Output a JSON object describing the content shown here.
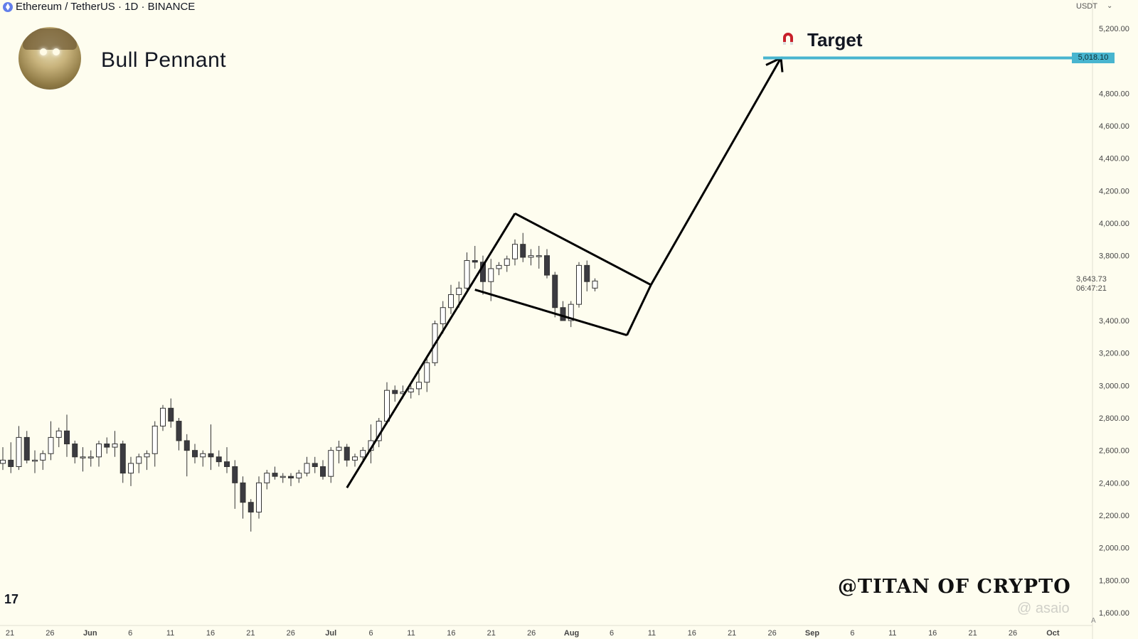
{
  "header": {
    "symbol": "Ethereum / TetherUS · 1D · BINANCE"
  },
  "title": "Bull Pennant",
  "target_label": "Target",
  "watermark": "@TITAN OF CRYPTO",
  "tv_logo": "17",
  "faint_watermark": "@ asaio",
  "price_axis": {
    "unit": "USDT",
    "ticks": [
      "5,200.00",
      "4,800.00",
      "4,600.00",
      "4,400.00",
      "4,200.00",
      "4,000.00",
      "3,800.00",
      "3,400.00",
      "3,200.00",
      "3,000.00",
      "2,800.00",
      "2,600.00",
      "2,400.00",
      "2,200.00",
      "2,000.00",
      "1,800.00",
      "1,600.00"
    ],
    "tick_values": [
      5200,
      4800,
      4600,
      4400,
      4200,
      4000,
      3800,
      3400,
      3200,
      3000,
      2800,
      2600,
      2400,
      2200,
      2000,
      1800,
      1600
    ],
    "target_price": "5,018.10",
    "last_price": "3,643.73",
    "countdown": "06:47:21",
    "scale_button": "A"
  },
  "time_axis": {
    "labels": [
      "21",
      "26",
      "Jun",
      "6",
      "11",
      "16",
      "21",
      "26",
      "Jul",
      "6",
      "11",
      "16",
      "21",
      "26",
      "Aug",
      "6",
      "11",
      "16",
      "21",
      "26",
      "Sep",
      "6",
      "11",
      "16",
      "21",
      "26",
      "Oct"
    ]
  },
  "colors": {
    "background": "#fefdef",
    "candle_up": "#ffffff",
    "candle_down": "#3b3b40",
    "target_line": "#48b5cf",
    "pattern_lines": "#000000"
  },
  "chart_data": {
    "type": "candlestick",
    "title": "Bull Pennant",
    "pair": "ETH/USDT",
    "interval": "1D",
    "y_range": [
      1580,
      5250
    ],
    "target": 5018.1,
    "last": 3643.73,
    "ohlc": [
      [
        2520,
        2620,
        2480,
        2540
      ],
      [
        2540,
        2650,
        2460,
        2500
      ],
      [
        2500,
        2750,
        2480,
        2680
      ],
      [
        2680,
        2720,
        2520,
        2540
      ],
      [
        2540,
        2600,
        2460,
        2540
      ],
      [
        2540,
        2600,
        2480,
        2580
      ],
      [
        2580,
        2780,
        2540,
        2680
      ],
      [
        2680,
        2740,
        2620,
        2720
      ],
      [
        2720,
        2820,
        2560,
        2640
      ],
      [
        2640,
        2660,
        2520,
        2560
      ],
      [
        2560,
        2620,
        2470,
        2560
      ],
      [
        2560,
        2600,
        2500,
        2560
      ],
      [
        2560,
        2660,
        2500,
        2640
      ],
      [
        2640,
        2680,
        2580,
        2620
      ],
      [
        2620,
        2720,
        2560,
        2640
      ],
      [
        2640,
        2660,
        2400,
        2460
      ],
      [
        2460,
        2560,
        2380,
        2520
      ],
      [
        2520,
        2580,
        2460,
        2560
      ],
      [
        2560,
        2600,
        2480,
        2580
      ],
      [
        2580,
        2780,
        2500,
        2750
      ],
      [
        2750,
        2880,
        2720,
        2860
      ],
      [
        2860,
        2920,
        2740,
        2780
      ],
      [
        2780,
        2800,
        2600,
        2660
      ],
      [
        2660,
        2700,
        2440,
        2600
      ],
      [
        2600,
        2640,
        2520,
        2560
      ],
      [
        2560,
        2600,
        2500,
        2580
      ],
      [
        2580,
        2760,
        2480,
        2560
      ],
      [
        2560,
        2600,
        2500,
        2530
      ],
      [
        2530,
        2620,
        2460,
        2500
      ],
      [
        2500,
        2540,
        2240,
        2400
      ],
      [
        2400,
        2440,
        2180,
        2280
      ],
      [
        2280,
        2300,
        2100,
        2220
      ],
      [
        2220,
        2440,
        2180,
        2400
      ],
      [
        2400,
        2480,
        2360,
        2460
      ],
      [
        2460,
        2500,
        2420,
        2440
      ],
      [
        2440,
        2460,
        2400,
        2440
      ],
      [
        2440,
        2460,
        2380,
        2430
      ],
      [
        2430,
        2480,
        2400,
        2460
      ],
      [
        2460,
        2560,
        2440,
        2520
      ],
      [
        2520,
        2560,
        2460,
        2500
      ],
      [
        2500,
        2540,
        2420,
        2440
      ],
      [
        2440,
        2620,
        2400,
        2600
      ],
      [
        2600,
        2660,
        2520,
        2620
      ],
      [
        2620,
        2640,
        2500,
        2540
      ],
      [
        2540,
        2580,
        2500,
        2560
      ],
      [
        2560,
        2620,
        2540,
        2600
      ],
      [
        2600,
        2760,
        2520,
        2660
      ],
      [
        2660,
        2800,
        2620,
        2780
      ],
      [
        2780,
        3020,
        2760,
        2970
      ],
      [
        2970,
        3000,
        2900,
        2950
      ],
      [
        2950,
        3000,
        2920,
        2960
      ],
      [
        2960,
        3000,
        2920,
        2980
      ],
      [
        2980,
        3080,
        2940,
        3020
      ],
      [
        3020,
        3180,
        2960,
        3140
      ],
      [
        3140,
        3400,
        3120,
        3380
      ],
      [
        3380,
        3520,
        3320,
        3480
      ],
      [
        3480,
        3620,
        3440,
        3560
      ],
      [
        3560,
        3640,
        3480,
        3600
      ],
      [
        3600,
        3820,
        3580,
        3770
      ],
      [
        3770,
        3860,
        3720,
        3760
      ],
      [
        3760,
        3800,
        3560,
        3640
      ],
      [
        3640,
        3780,
        3520,
        3720
      ],
      [
        3720,
        3760,
        3680,
        3740
      ],
      [
        3740,
        3800,
        3700,
        3780
      ],
      [
        3780,
        3900,
        3740,
        3870
      ],
      [
        3870,
        3940,
        3760,
        3790
      ],
      [
        3790,
        3840,
        3740,
        3800
      ],
      [
        3800,
        3860,
        3720,
        3800
      ],
      [
        3800,
        3840,
        3660,
        3680
      ],
      [
        3680,
        3700,
        3420,
        3480
      ],
      [
        3480,
        3520,
        3400,
        3400
      ],
      [
        3400,
        3520,
        3360,
        3500
      ],
      [
        3500,
        3760,
        3480,
        3740
      ],
      [
        3740,
        3770,
        3580,
        3640
      ],
      [
        3600,
        3660,
        3580,
        3643.73
      ]
    ]
  }
}
